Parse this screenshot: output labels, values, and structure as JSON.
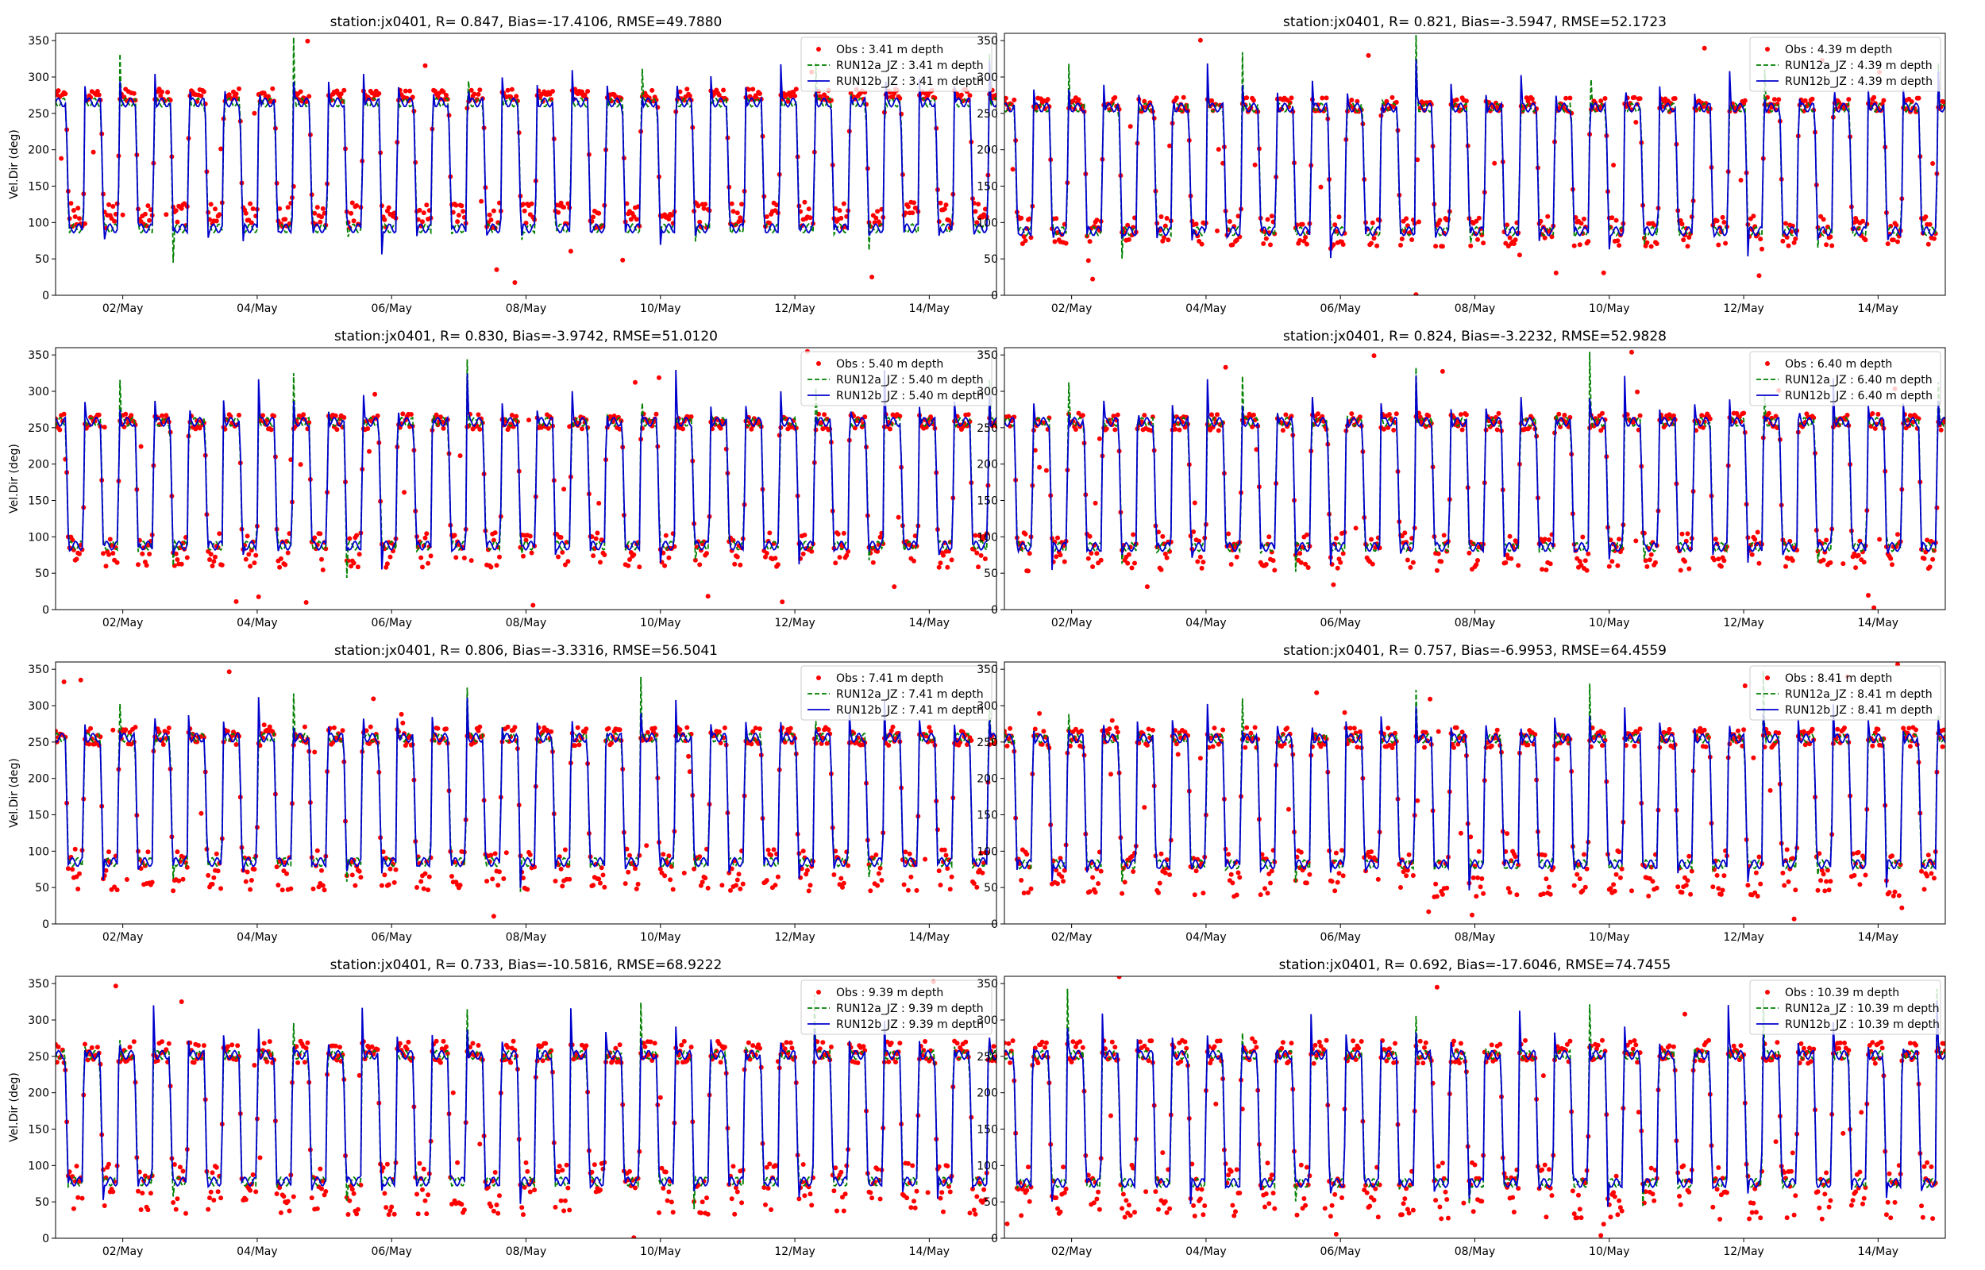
{
  "figure": {
    "title": ""
  },
  "colors": {
    "obs": "#ff0000",
    "run12a": "#008000",
    "run12b": "#0000cd"
  },
  "chart_data": [
    {
      "type": "line",
      "title": "station:jx0401, R= 0.847, Bias=-17.4106, RMSE=49.7880",
      "ylabel": "Vel.Dir (deg)",
      "xlabel": "",
      "xlim": [
        "2023-05-01 00:00",
        "2023-05-15 00:00"
      ],
      "ylim": [
        0,
        360
      ],
      "yticks": [
        0,
        50,
        100,
        150,
        200,
        250,
        300,
        350
      ],
      "xticks": [
        "02/May",
        "04/May",
        "06/May",
        "08/May",
        "10/May",
        "12/May",
        "14/May"
      ],
      "grid": false,
      "legend_position": "top-right",
      "depth": 3.41,
      "high_level": 275,
      "low_level": 110,
      "mod_high": 265,
      "mod_low": 92,
      "series": [
        {
          "name": "Obs : 3.41 m depth",
          "kind": "points"
        },
        {
          "name": "RUN12a_JZ : 3.41 m depth",
          "kind": "dashed"
        },
        {
          "name": "RUN12b_JZ : 3.41 m depth",
          "kind": "line"
        }
      ]
    },
    {
      "type": "line",
      "title": "station:jx0401, R= 0.821, Bias=-3.5947, RMSE=52.1723",
      "ylabel": "",
      "xlabel": "",
      "xlim": [
        "2023-05-01 00:00",
        "2023-05-15 00:00"
      ],
      "ylim": [
        0,
        360
      ],
      "yticks": [
        0,
        50,
        100,
        150,
        200,
        250,
        300,
        350
      ],
      "xticks": [
        "02/May",
        "04/May",
        "06/May",
        "08/May",
        "10/May",
        "12/May",
        "14/May"
      ],
      "grid": false,
      "legend_position": "top-right",
      "depth": 4.39,
      "high_level": 262,
      "low_level": 88,
      "mod_high": 258,
      "mod_low": 88,
      "series": [
        {
          "name": "Obs : 4.39 m depth",
          "kind": "points"
        },
        {
          "name": "RUN12a_JZ : 4.39 m depth",
          "kind": "dashed"
        },
        {
          "name": "RUN12b_JZ : 4.39 m depth",
          "kind": "line"
        }
      ]
    },
    {
      "type": "line",
      "title": "station:jx0401, R= 0.830, Bias=-3.9742, RMSE=51.0120",
      "ylabel": "Vel.Dir (deg)",
      "xlabel": "",
      "xlim": [
        "2023-05-01 00:00",
        "2023-05-15 00:00"
      ],
      "ylim": [
        0,
        360
      ],
      "yticks": [
        0,
        50,
        100,
        150,
        200,
        250,
        300,
        350
      ],
      "xticks": [
        "02/May",
        "04/May",
        "06/May",
        "08/May",
        "10/May",
        "12/May",
        "14/May"
      ],
      "grid": false,
      "legend_position": "top-right",
      "depth": 5.4,
      "high_level": 258,
      "low_level": 82,
      "mod_high": 258,
      "mod_low": 88,
      "series": [
        {
          "name": "Obs : 5.40 m depth",
          "kind": "points"
        },
        {
          "name": "RUN12a_JZ : 5.40 m depth",
          "kind": "dashed"
        },
        {
          "name": "RUN12b_JZ : 5.40 m depth",
          "kind": "line"
        }
      ]
    },
    {
      "type": "line",
      "title": "station:jx0401, R= 0.824, Bias=-3.2232, RMSE=52.9828",
      "ylabel": "",
      "xlabel": "",
      "xlim": [
        "2023-05-01 00:00",
        "2023-05-15 00:00"
      ],
      "ylim": [
        0,
        360
      ],
      "yticks": [
        0,
        50,
        100,
        150,
        200,
        250,
        300,
        350
      ],
      "xticks": [
        "02/May",
        "04/May",
        "06/May",
        "08/May",
        "10/May",
        "12/May",
        "14/May"
      ],
      "grid": false,
      "legend_position": "top-right",
      "depth": 6.4,
      "high_level": 258,
      "low_level": 80,
      "mod_high": 258,
      "mod_low": 86,
      "series": [
        {
          "name": "Obs : 6.40 m depth",
          "kind": "points"
        },
        {
          "name": "RUN12a_JZ : 6.40 m depth",
          "kind": "dashed"
        },
        {
          "name": "RUN12b_JZ : 6.40 m depth",
          "kind": "line"
        }
      ]
    },
    {
      "type": "line",
      "title": "station:jx0401, R= 0.806, Bias=-3.3316, RMSE=56.5041",
      "ylabel": "Vel.Dir (deg)",
      "xlabel": "",
      "xlim": [
        "2023-05-01 00:00",
        "2023-05-15 00:00"
      ],
      "ylim": [
        0,
        360
      ],
      "yticks": [
        0,
        50,
        100,
        150,
        200,
        250,
        300,
        350
      ],
      "xticks": [
        "02/May",
        "04/May",
        "06/May",
        "08/May",
        "10/May",
        "12/May",
        "14/May"
      ],
      "grid": false,
      "legend_position": "top-right",
      "depth": 7.41,
      "high_level": 258,
      "low_level": 75,
      "mod_high": 256,
      "mod_low": 85,
      "series": [
        {
          "name": "Obs : 7.41 m depth",
          "kind": "points"
        },
        {
          "name": "RUN12a_JZ : 7.41 m depth",
          "kind": "dashed"
        },
        {
          "name": "RUN12b_JZ : 7.41 m depth",
          "kind": "line"
        }
      ]
    },
    {
      "type": "line",
      "title": "station:jx0401, R= 0.757, Bias=-6.9953, RMSE=64.4559",
      "ylabel": "",
      "xlabel": "",
      "xlim": [
        "2023-05-01 00:00",
        "2023-05-15 00:00"
      ],
      "ylim": [
        0,
        360
      ],
      "yticks": [
        0,
        50,
        100,
        150,
        200,
        250,
        300,
        350
      ],
      "xticks": [
        "02/May",
        "04/May",
        "06/May",
        "08/May",
        "10/May",
        "12/May",
        "14/May"
      ],
      "grid": false,
      "legend_position": "top-right",
      "depth": 8.41,
      "high_level": 256,
      "low_level": 70,
      "mod_high": 255,
      "mod_low": 82,
      "series": [
        {
          "name": "Obs : 8.41 m depth",
          "kind": "points"
        },
        {
          "name": "RUN12a_JZ : 8.41 m depth",
          "kind": "dashed"
        },
        {
          "name": "RUN12b_JZ : 8.41 m depth",
          "kind": "line"
        }
      ]
    },
    {
      "type": "line",
      "title": "station:jx0401, R= 0.733, Bias=-10.5816, RMSE=68.9222",
      "ylabel": "Vel.Dir (deg)",
      "xlabel": "",
      "xlim": [
        "2023-05-01 00:00",
        "2023-05-15 00:00"
      ],
      "ylim": [
        0,
        360
      ],
      "yticks": [
        0,
        50,
        100,
        150,
        200,
        250,
        300,
        350
      ],
      "xticks": [
        "02/May",
        "04/May",
        "06/May",
        "08/May",
        "10/May",
        "12/May",
        "14/May"
      ],
      "grid": false,
      "legend_position": "top-right",
      "depth": 9.39,
      "high_level": 256,
      "low_level": 68,
      "mod_high": 252,
      "mod_low": 78,
      "series": [
        {
          "name": "Obs : 9.39 m depth",
          "kind": "points"
        },
        {
          "name": "RUN12a_JZ : 9.39 m depth",
          "kind": "dashed"
        },
        {
          "name": "RUN12b_JZ : 9.39 m depth",
          "kind": "line"
        }
      ]
    },
    {
      "type": "line",
      "title": "station:jx0401, R= 0.692, Bias=-17.6046, RMSE=74.7455",
      "ylabel": "",
      "xlabel": "",
      "xlim": [
        "2023-05-01 00:00",
        "2023-05-15 00:00"
      ],
      "ylim": [
        0,
        360
      ],
      "yticks": [
        0,
        50,
        100,
        150,
        200,
        250,
        300,
        350
      ],
      "xticks": [
        "02/May",
        "04/May",
        "06/May",
        "08/May",
        "10/May",
        "12/May",
        "14/May"
      ],
      "grid": false,
      "legend_position": "top-right",
      "depth": 10.39,
      "high_level": 256,
      "low_level": 65,
      "mod_high": 252,
      "mod_low": 76,
      "series": [
        {
          "name": "Obs : 10.39 m depth",
          "kind": "points"
        },
        {
          "name": "RUN12a_JZ : 10.39 m depth",
          "kind": "dashed"
        },
        {
          "name": "RUN12b_JZ : 10.39 m depth",
          "kind": "line"
        }
      ]
    }
  ]
}
